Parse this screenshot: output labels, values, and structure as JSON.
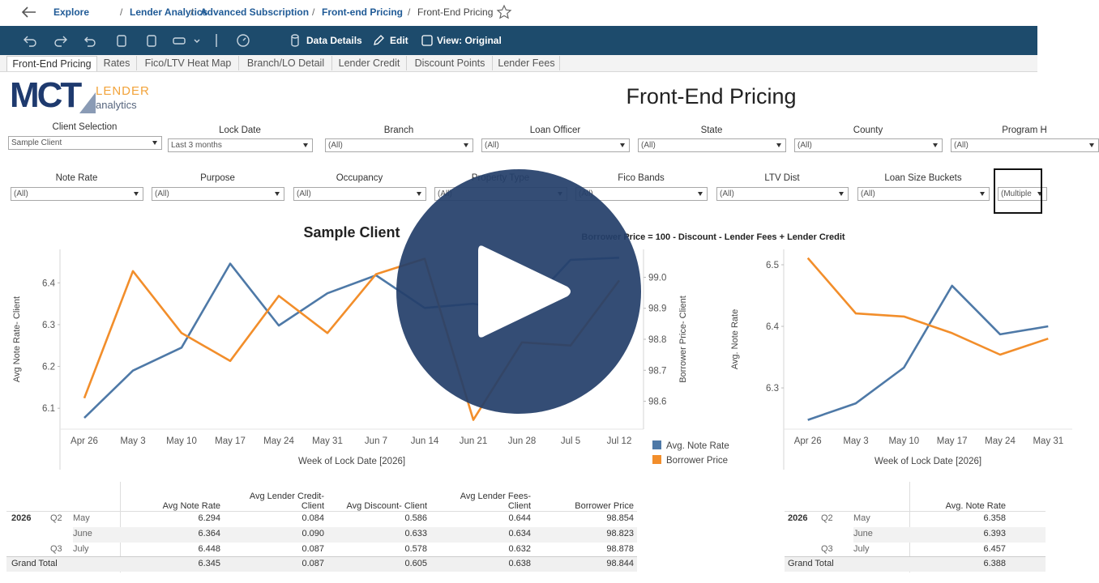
{
  "breadcrumb": [
    "Explore",
    "Lender Analytics",
    "Advanced Subscription",
    "Front-end Pricing",
    "Front-End Pricing"
  ],
  "toolbar": [
    "Data Details",
    "Edit",
    "View: Original"
  ],
  "tabs": [
    "Front-End Pricing",
    "Rates",
    "Fico/LTV Heat Map",
    "Branch/LO Detail",
    "Lender Credit",
    "Discount Points",
    "Lender Fees"
  ],
  "logo": {
    "main": "MCT",
    "line1": "LENDER",
    "line2": "analytics"
  },
  "title": "Front-End Pricing",
  "filters_row1": [
    {
      "label": "Client Selection",
      "value": "Sample Client"
    },
    {
      "label": "Lock Date",
      "value": "Last 3 months"
    },
    {
      "label": "Branch",
      "value": "(All)"
    },
    {
      "label": "Loan Officer",
      "value": "(All)"
    },
    {
      "label": "State",
      "value": "(All)"
    },
    {
      "label": "County",
      "value": "(All)"
    },
    {
      "label": "Program H",
      "value": "(All)"
    }
  ],
  "filters_row2": [
    {
      "label": "Note Rate",
      "value": "(All)"
    },
    {
      "label": "Purpose",
      "value": "(All)"
    },
    {
      "label": "Occupancy",
      "value": "(All)"
    },
    {
      "label": "Property Type",
      "value": "(All)"
    },
    {
      "label": "Fico Bands",
      "value": "(All)"
    },
    {
      "label": "LTV Dist",
      "value": "(All)"
    },
    {
      "label": "Loan Size Buckets",
      "value": "(All)"
    },
    {
      "value": "(Multiple"
    }
  ],
  "chart_data": [
    {
      "type": "line",
      "title": "Sample Client",
      "annotation": "Borrower Price = 100 - Discount - Lender Fees + Lender Credit",
      "categories": [
        "Apr 26",
        "May 3",
        "May 10",
        "May 17",
        "May 24",
        "May 31",
        "Jun 7",
        "Jun 14",
        "Jun 21",
        "Jun 28",
        "Jul 5",
        "Jul 12"
      ],
      "xlabel": "Week of Lock Date [2026]",
      "ylabel": "Avg Note Rate- Client",
      "y2label": "Borrower Price- Client",
      "ylim": [
        6.05,
        6.48
      ],
      "yticks": [
        6.1,
        6.2,
        6.3,
        6.4
      ],
      "y2lim": [
        98.51,
        99.09
      ],
      "y2ticks": [
        98.6,
        98.7,
        98.8,
        98.9,
        {
          "value": 99,
          "label": "99.0"
        }
      ],
      "series": [
        {
          "name": "Avg. Note Rate",
          "color": "#4e79a7",
          "values": [
            6.077,
            6.19,
            6.245,
            6.446,
            6.298,
            6.375,
            6.418,
            6.34,
            6.35,
            6.33,
            6.455,
            6.46
          ]
        },
        {
          "name": "Borrower Price",
          "color": "#f28e2b",
          "axis": "y2",
          "values": [
            98.61,
            99.02,
            98.82,
            98.73,
            98.94,
            98.82,
            99.01,
            99.06,
            98.54,
            98.79,
            98.78,
            98.99
          ]
        }
      ],
      "legend": "right"
    },
    {
      "type": "line",
      "categories": [
        "Apr 26",
        "May 3",
        "May 10",
        "May 17",
        "May 24",
        "May 31"
      ],
      "xlabel": "Week of Lock Date [2026]",
      "ylabel": "Avg. Note Rate",
      "ylim": [
        6.233,
        6.525
      ],
      "yticks": [
        6.3,
        6.4,
        6.5
      ],
      "series": [
        {
          "color": "#4e79a7",
          "values": [
            6.248,
            6.275,
            6.333,
            6.466,
            6.387,
            6.4
          ]
        },
        {
          "color": "#f28e2b",
          "values": [
            6.511,
            6.421,
            6.416,
            6.389,
            6.354,
            6.38
          ]
        }
      ]
    }
  ],
  "tables": [
    {
      "columns": [
        "Avg Note Rate",
        "Avg Lender Credit- Client",
        "Avg Discount- Client",
        "Avg Lender Fees- Client",
        "Borrower Price"
      ],
      "rows": [
        {
          "year": "2026",
          "quarter": "Q2",
          "month": "May",
          "cells": [
            "6.294",
            "0.084",
            "0.586",
            "0.644",
            "98.854"
          ]
        },
        {
          "month": "June",
          "cells": [
            "6.364",
            "0.090",
            "0.633",
            "0.634",
            "98.823"
          ]
        },
        {
          "quarter": "Q3",
          "month": "July",
          "cells": [
            "6.448",
            "0.087",
            "0.578",
            "0.632",
            "98.878"
          ]
        }
      ],
      "total": {
        "label": "Grand Total",
        "cells": [
          "6.345",
          "0.087",
          "0.605",
          "0.638",
          "98.844"
        ]
      }
    },
    {
      "columns": [
        "Avg. Note Rate"
      ],
      "rows": [
        {
          "year": "2026",
          "quarter": "Q2",
          "month": "May",
          "cells": [
            "6.358"
          ]
        },
        {
          "month": "June",
          "cells": [
            "6.393"
          ]
        },
        {
          "quarter": "Q3",
          "month": "July",
          "cells": [
            "6.457"
          ]
        }
      ],
      "total": {
        "label": "Grand Total",
        "cells": [
          "6.388"
        ]
      }
    }
  ]
}
